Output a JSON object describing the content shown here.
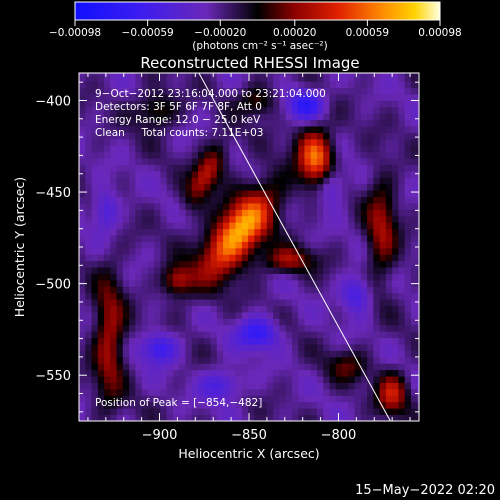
{
  "chart_data": {
    "type": "heatmap",
    "title": "Reconstructed RHESSI Image",
    "xlabel": "Heliocentric X (arcsec)",
    "ylabel": "Heliocentric Y (arcsec)",
    "xlim": [
      -945,
      -755
    ],
    "ylim": [
      -575,
      -385
    ],
    "xticks": [
      -900,
      -850,
      -800
    ],
    "xtick_labels": [
      "−900",
      "−850",
      "−800"
    ],
    "yticks": [
      -400,
      -450,
      -500,
      -550
    ],
    "ytick_labels": [
      "−400",
      "−450",
      "−500",
      "−550"
    ],
    "colorbar": {
      "range": [
        -0.00098,
        0.00098
      ],
      "ticks": [
        -0.00098,
        -0.00059,
        -0.0002,
        0.0002,
        0.00059,
        0.00098
      ],
      "tick_labels": [
        "−0.00098",
        "−0.00059",
        "−0.00020",
        "0.00020",
        "0.00059",
        "0.00098"
      ],
      "units_label": "(photons cm⁻² s⁻¹ asec⁻²)"
    },
    "annotations": [
      "9−Oct−2012 23:16:04.000 to 23:21:04.000",
      "Detectors: 3F 5F 6F 7F 8F, Att 0",
      "Energy Range: 12.0 − 25.0 keV",
      "Clean     Total counts: 7.11E+03"
    ],
    "peak_label": "Position of Peak = [−854,−482]",
    "peak": {
      "x": -854,
      "y": -482
    },
    "limb_line": {
      "x1": -878,
      "y1": -385,
      "x2": -771,
      "y2": -575
    },
    "sources": [
      {
        "x": -856,
        "y": -472,
        "sx": 9,
        "sy": 20,
        "angle": -38,
        "amp": 1.0
      },
      {
        "x": -874,
        "y": -440,
        "sx": 5,
        "sy": 13,
        "angle": -30,
        "amp": 0.55
      },
      {
        "x": -890,
        "y": -498,
        "sx": 6,
        "sy": 6,
        "angle": 0,
        "amp": 0.5
      },
      {
        "x": -812,
        "y": -432,
        "sx": 7,
        "sy": 12,
        "angle": 10,
        "amp": 0.85
      },
      {
        "x": -828,
        "y": -487,
        "sx": 10,
        "sy": 5,
        "angle": 0,
        "amp": 0.45
      },
      {
        "x": -776,
        "y": -470,
        "sx": 6,
        "sy": 20,
        "angle": 0,
        "amp": 0.45
      },
      {
        "x": -928,
        "y": -530,
        "sx": 6,
        "sy": 25,
        "angle": 0,
        "amp": 0.5
      },
      {
        "x": -902,
        "y": -405,
        "sx": 8,
        "sy": 7,
        "angle": 0,
        "amp": 0.35
      },
      {
        "x": -845,
        "y": -400,
        "sx": 7,
        "sy": 6,
        "angle": 0,
        "amp": 0.35
      },
      {
        "x": -770,
        "y": -560,
        "sx": 6,
        "sy": 8,
        "angle": 0,
        "amp": 0.55
      },
      {
        "x": -795,
        "y": -545,
        "sx": 8,
        "sy": 6,
        "angle": 0,
        "amp": 0.3
      }
    ],
    "negatives": [
      {
        "x": -818,
        "y": -402,
        "sx": 7,
        "sy": 6,
        "amp": 0.55
      },
      {
        "x": -805,
        "y": -445,
        "sx": 6,
        "sy": 8,
        "amp": 0.5
      },
      {
        "x": -900,
        "y": -535,
        "sx": 7,
        "sy": 6,
        "amp": 0.45
      },
      {
        "x": -845,
        "y": -527,
        "sx": 8,
        "sy": 6,
        "amp": 0.5
      },
      {
        "x": -790,
        "y": -505,
        "sx": 6,
        "sy": 7,
        "amp": 0.4
      },
      {
        "x": -930,
        "y": -460,
        "sx": 5,
        "sy": 8,
        "amp": 0.35
      },
      {
        "x": -865,
        "y": -555,
        "sx": 8,
        "sy": 6,
        "amp": 0.35
      }
    ]
  },
  "footer": {
    "timestamp": "15−May−2022 02:20"
  }
}
